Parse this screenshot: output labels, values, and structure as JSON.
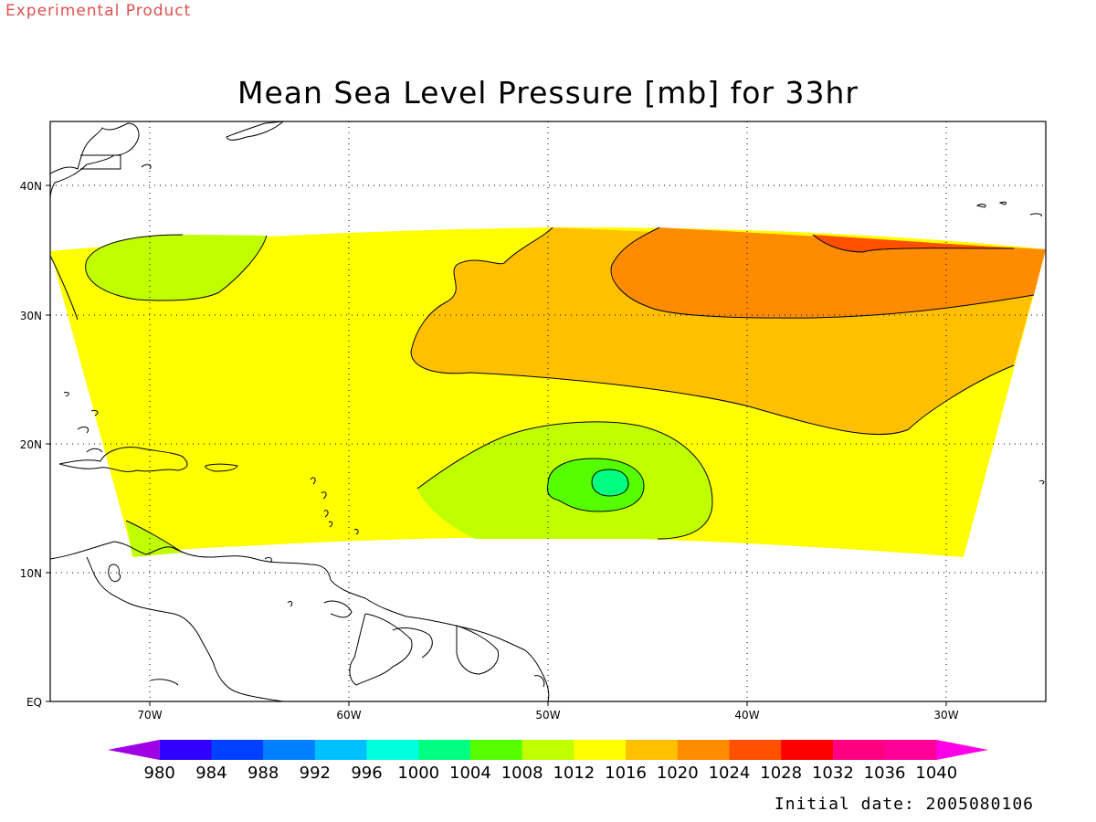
{
  "header": {
    "watermark": "Experimental Product",
    "title": "Mean Sea Level Pressure [mb] for 33hr"
  },
  "map": {
    "variable": "Mean Sea Level Pressure",
    "units": "mb",
    "forecast_hour": "33hr",
    "lon_ticks": [
      "70W",
      "60W",
      "50W",
      "40W",
      "30W"
    ],
    "lat_ticks": [
      "40N",
      "30N",
      "20N",
      "10N",
      "EQ"
    ],
    "grid": "dotted",
    "features": {
      "low_center": {
        "lon": -47,
        "lat": 17,
        "min_contour_mb": 1000
      },
      "high_center": {
        "lon": -34,
        "lat": 36,
        "max_contour_mb": 1028
      }
    }
  },
  "colorbar": {
    "labels": [
      "980",
      "984",
      "988",
      "992",
      "996",
      "1000",
      "1004",
      "1008",
      "1012",
      "1016",
      "1020",
      "1024",
      "1028",
      "1032",
      "1036",
      "1040"
    ],
    "colors": [
      "#a000e6",
      "#3200ff",
      "#0040ff",
      "#0080ff",
      "#00c0ff",
      "#00ffdc",
      "#00ff80",
      "#55ff00",
      "#bfff00",
      "#ffff00",
      "#ffc000",
      "#ff8c00",
      "#ff5000",
      "#ff0000",
      "#ff0080",
      "#ff0096",
      "#ff00e6"
    ]
  },
  "footer": {
    "initial_date": "Initial date: 2005080106"
  }
}
